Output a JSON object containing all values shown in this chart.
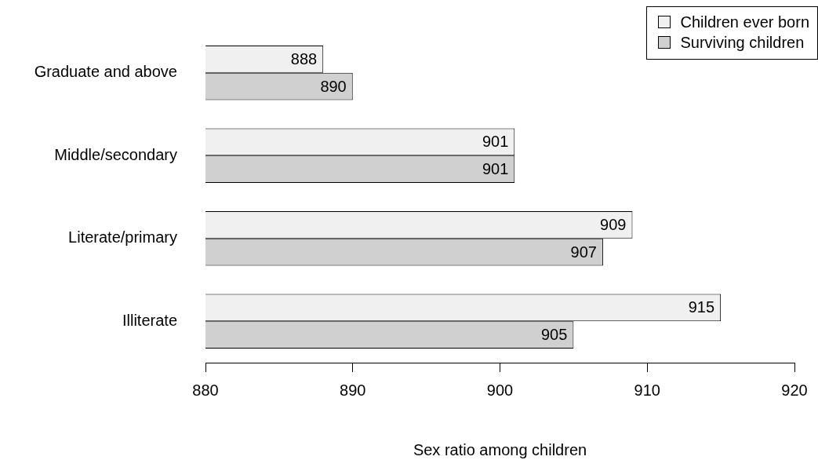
{
  "chart_data": {
    "type": "bar",
    "orientation": "horizontal",
    "categories": [
      "Graduate and above",
      "Middle/secondary",
      "Literate/primary",
      "Illiterate"
    ],
    "series": [
      {
        "name": "Children ever born",
        "color": "#f0f0f0",
        "values": [
          888,
          901,
          909,
          915
        ]
      },
      {
        "name": "Surviving children",
        "color": "#d0d0d0",
        "values": [
          890,
          901,
          907,
          905
        ]
      }
    ],
    "xlabel": "Sex ratio among children",
    "xlim": [
      880,
      920
    ],
    "xticks": [
      880,
      890,
      900,
      910,
      920
    ],
    "data_labels": true,
    "grid": false,
    "legend": "top right"
  }
}
